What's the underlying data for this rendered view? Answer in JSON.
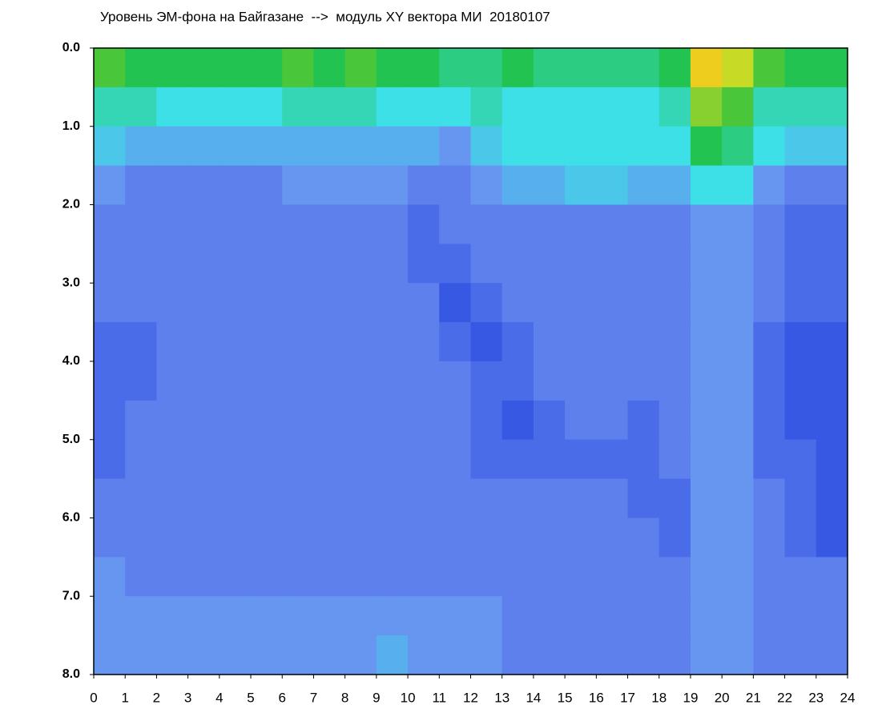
{
  "chart_data": {
    "type": "heatmap",
    "title": "Уровень ЭМ-фона на Байгазане  -->  модуль XY вектора МИ  20180107",
    "xlim": [
      0,
      24
    ],
    "xticks": [
      0,
      1,
      2,
      3,
      4,
      5,
      6,
      7,
      8,
      9,
      10,
      11,
      12,
      13,
      14,
      15,
      16,
      17,
      18,
      19,
      20,
      21,
      22,
      23,
      24
    ],
    "ylim": [
      8,
      0
    ],
    "yticks": [
      {
        "value": 0,
        "label": "0.0"
      },
      {
        "value": 1,
        "label": "1.0"
      },
      {
        "value": 2,
        "label": "2.0"
      },
      {
        "value": 3,
        "label": "3.0"
      },
      {
        "value": 4,
        "label": "4.0"
      },
      {
        "value": 5,
        "label": "5.0"
      },
      {
        "value": 6,
        "label": "6.0"
      },
      {
        "value": 7,
        "label": "7.0"
      },
      {
        "value": 8,
        "label": "8.0"
      }
    ],
    "zlim": [
      0,
      10
    ],
    "colorscale": [
      "#0a1fb0",
      "#2a4ae0",
      "#6a8ef0",
      "#3ee0e8",
      "#20c040",
      "#f0e020",
      "#e02010"
    ],
    "z": [
      [
        7,
        6.5,
        6.5,
        6.5,
        6.5,
        6.5,
        7,
        6.5,
        7,
        6.5,
        6.5,
        6,
        6,
        6.5,
        6,
        6,
        6,
        6,
        6.5,
        8.5,
        8,
        7,
        6.5,
        6.5
      ],
      [
        5.5,
        5.5,
        5,
        5,
        5,
        5,
        5.5,
        5.5,
        5.5,
        5,
        5,
        5,
        5.5,
        5,
        5,
        5,
        5,
        5,
        5.5,
        7.5,
        7,
        5.5,
        5.5,
        5.5
      ],
      [
        4.5,
        4,
        4,
        4,
        4,
        4,
        4,
        4,
        4,
        4,
        4,
        3.5,
        4.5,
        5,
        5,
        5,
        5,
        5,
        5,
        6.5,
        6,
        5,
        4.5,
        4.5
      ],
      [
        3.5,
        3,
        3,
        3,
        3,
        3,
        3.5,
        3.5,
        3.5,
        3.5,
        3,
        3,
        3.5,
        4,
        4,
        4.5,
        4.5,
        4,
        4,
        5,
        5,
        3.5,
        3,
        3
      ],
      [
        3,
        3,
        3,
        3,
        3,
        3,
        3,
        3,
        3,
        3,
        2.5,
        3,
        3,
        3,
        3,
        3,
        3,
        3,
        3,
        3.5,
        3.5,
        3,
        2.5,
        2.5
      ],
      [
        3,
        3,
        3,
        3,
        3,
        3,
        3,
        3,
        3,
        3,
        2.5,
        2.5,
        3,
        3,
        3,
        3,
        3,
        3,
        3,
        3.5,
        3.5,
        3,
        2.5,
        2.5
      ],
      [
        3,
        3,
        3,
        3,
        3,
        3,
        3,
        3,
        3,
        3,
        3,
        2,
        2.5,
        3,
        3,
        3,
        3,
        3,
        3,
        3.5,
        3.5,
        3,
        2.5,
        2.5
      ],
      [
        2.5,
        2.5,
        3,
        3,
        3,
        3,
        3,
        3,
        3,
        3,
        3,
        2.5,
        2,
        2.5,
        3,
        3,
        3,
        3,
        3,
        3.5,
        3.5,
        2.5,
        2,
        2
      ],
      [
        2.5,
        2.5,
        3,
        3,
        3,
        3,
        3,
        3,
        3,
        3,
        3,
        3,
        2.5,
        2.5,
        3,
        3,
        3,
        3,
        3,
        3.5,
        3.5,
        2.5,
        2,
        2
      ],
      [
        2.5,
        3,
        3,
        3,
        3,
        3,
        3,
        3,
        3,
        3,
        3,
        3,
        2.5,
        2,
        2.5,
        3,
        3,
        2.5,
        3,
        3.5,
        3.5,
        2.5,
        2,
        2
      ],
      [
        2.5,
        3,
        3,
        3,
        3,
        3,
        3,
        3,
        3,
        3,
        3,
        3,
        2.5,
        2.5,
        2.5,
        2.5,
        2.5,
        2.5,
        3,
        3.5,
        3.5,
        2.5,
        2.5,
        2
      ],
      [
        3,
        3,
        3,
        3,
        3,
        3,
        3,
        3,
        3,
        3,
        3,
        3,
        3,
        3,
        3,
        3,
        3,
        2.5,
        2.5,
        3.5,
        3.5,
        3,
        2.5,
        2
      ],
      [
        3,
        3,
        3,
        3,
        3,
        3,
        3,
        3,
        3,
        3,
        3,
        3,
        3,
        3,
        3,
        3,
        3,
        3,
        2.5,
        3.5,
        3.5,
        3,
        2.5,
        2
      ],
      [
        3.5,
        3,
        3,
        3,
        3,
        3,
        3,
        3,
        3,
        3,
        3,
        3,
        3,
        3,
        3,
        3,
        3,
        3,
        3,
        3.5,
        3.5,
        3,
        3,
        3
      ],
      [
        3.5,
        3.5,
        3.5,
        3.5,
        3.5,
        3.5,
        3.5,
        3.5,
        3.5,
        3.5,
        3.5,
        3.5,
        3.5,
        3,
        3,
        3,
        3,
        3,
        3,
        3.5,
        3.5,
        3,
        3,
        3
      ],
      [
        3.5,
        3.5,
        3.5,
        3.5,
        3.5,
        3.5,
        3.5,
        3.5,
        3.5,
        4,
        3.5,
        3.5,
        3.5,
        3,
        3,
        3,
        3,
        3,
        3,
        3.5,
        3.5,
        3,
        3,
        3
      ]
    ]
  }
}
